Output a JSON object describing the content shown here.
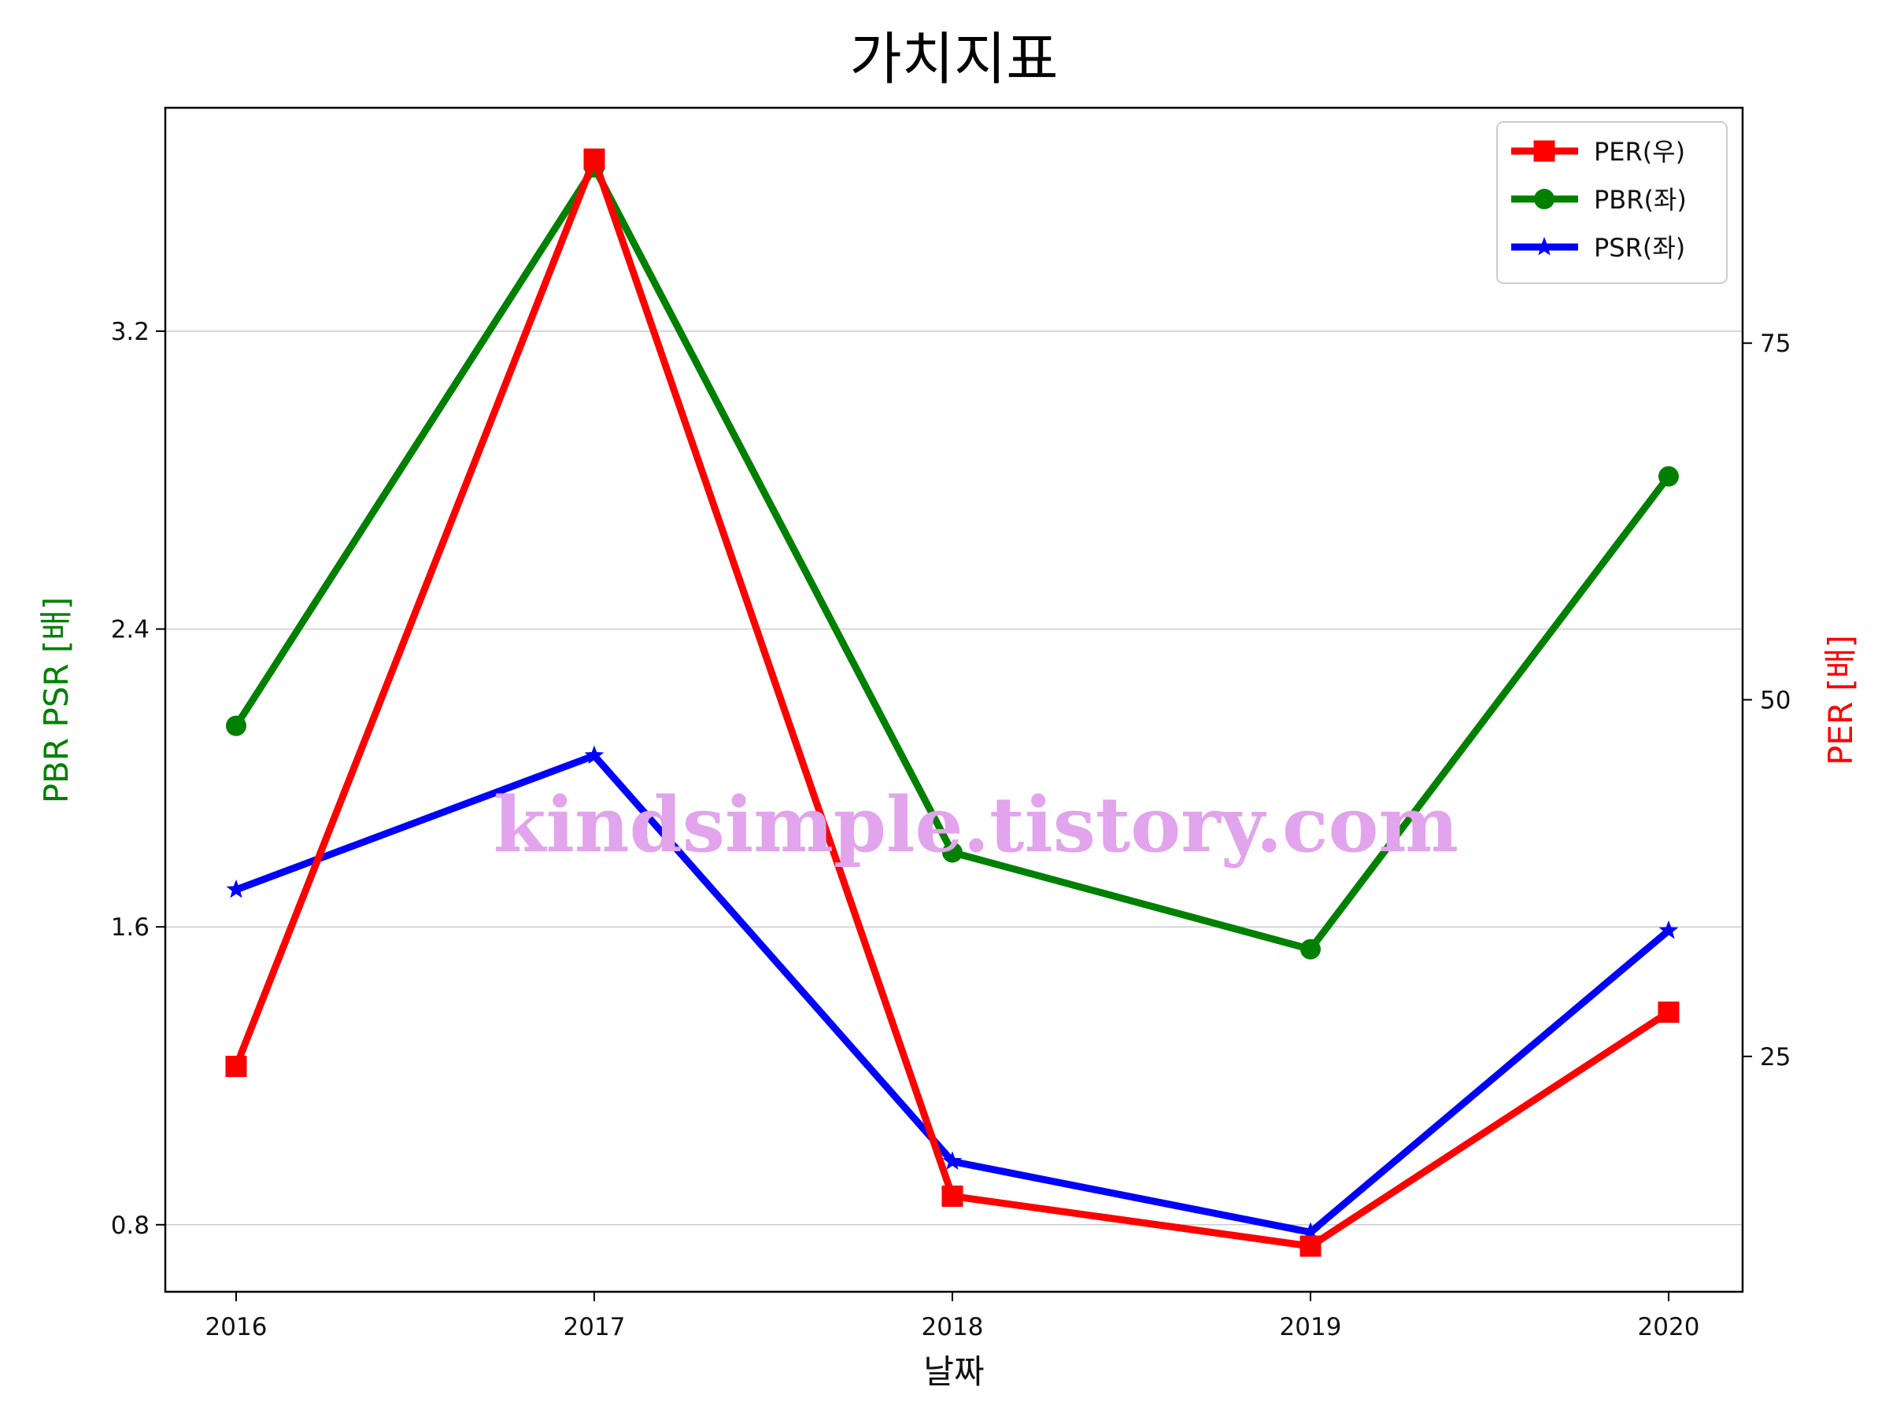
{
  "watermark": "kindsimple.tistory.com",
  "colors": {
    "per": "#ff0000",
    "pbr": "#008000",
    "psr": "#0000ff",
    "watermark": "#e2a4ec",
    "grid": "#cccccc",
    "axis": "#000000"
  },
  "chart_data": {
    "type": "line",
    "title": "가치지표",
    "xlabel": "날짜",
    "ylabel_left": "PBR PSR [배]",
    "ylabel_right": "PER [배]",
    "x": [
      "2016",
      "2017",
      "2018",
      "2019",
      "2020"
    ],
    "ylim_left": [
      0.62,
      3.8
    ],
    "ylim_right": [
      8.5,
      91.5
    ],
    "yticks_left": [
      "0.8",
      "1.6",
      "2.4",
      "3.2"
    ],
    "yticks_right": [
      "25",
      "50",
      "75"
    ],
    "grid": "horizontal-left",
    "legend_position": "top-right",
    "series": [
      {
        "name": "PER(우)",
        "axis": "right",
        "marker": "square",
        "values": [
          24.3,
          87.9,
          15.2,
          11.7,
          28.1
        ]
      },
      {
        "name": "PBR(좌)",
        "axis": "left",
        "marker": "circle",
        "values": [
          2.14,
          3.64,
          1.8,
          1.54,
          2.81
        ]
      },
      {
        "name": "PSR(좌)",
        "axis": "left",
        "marker": "star",
        "values": [
          1.7,
          2.06,
          0.97,
          0.78,
          1.59
        ]
      }
    ]
  }
}
